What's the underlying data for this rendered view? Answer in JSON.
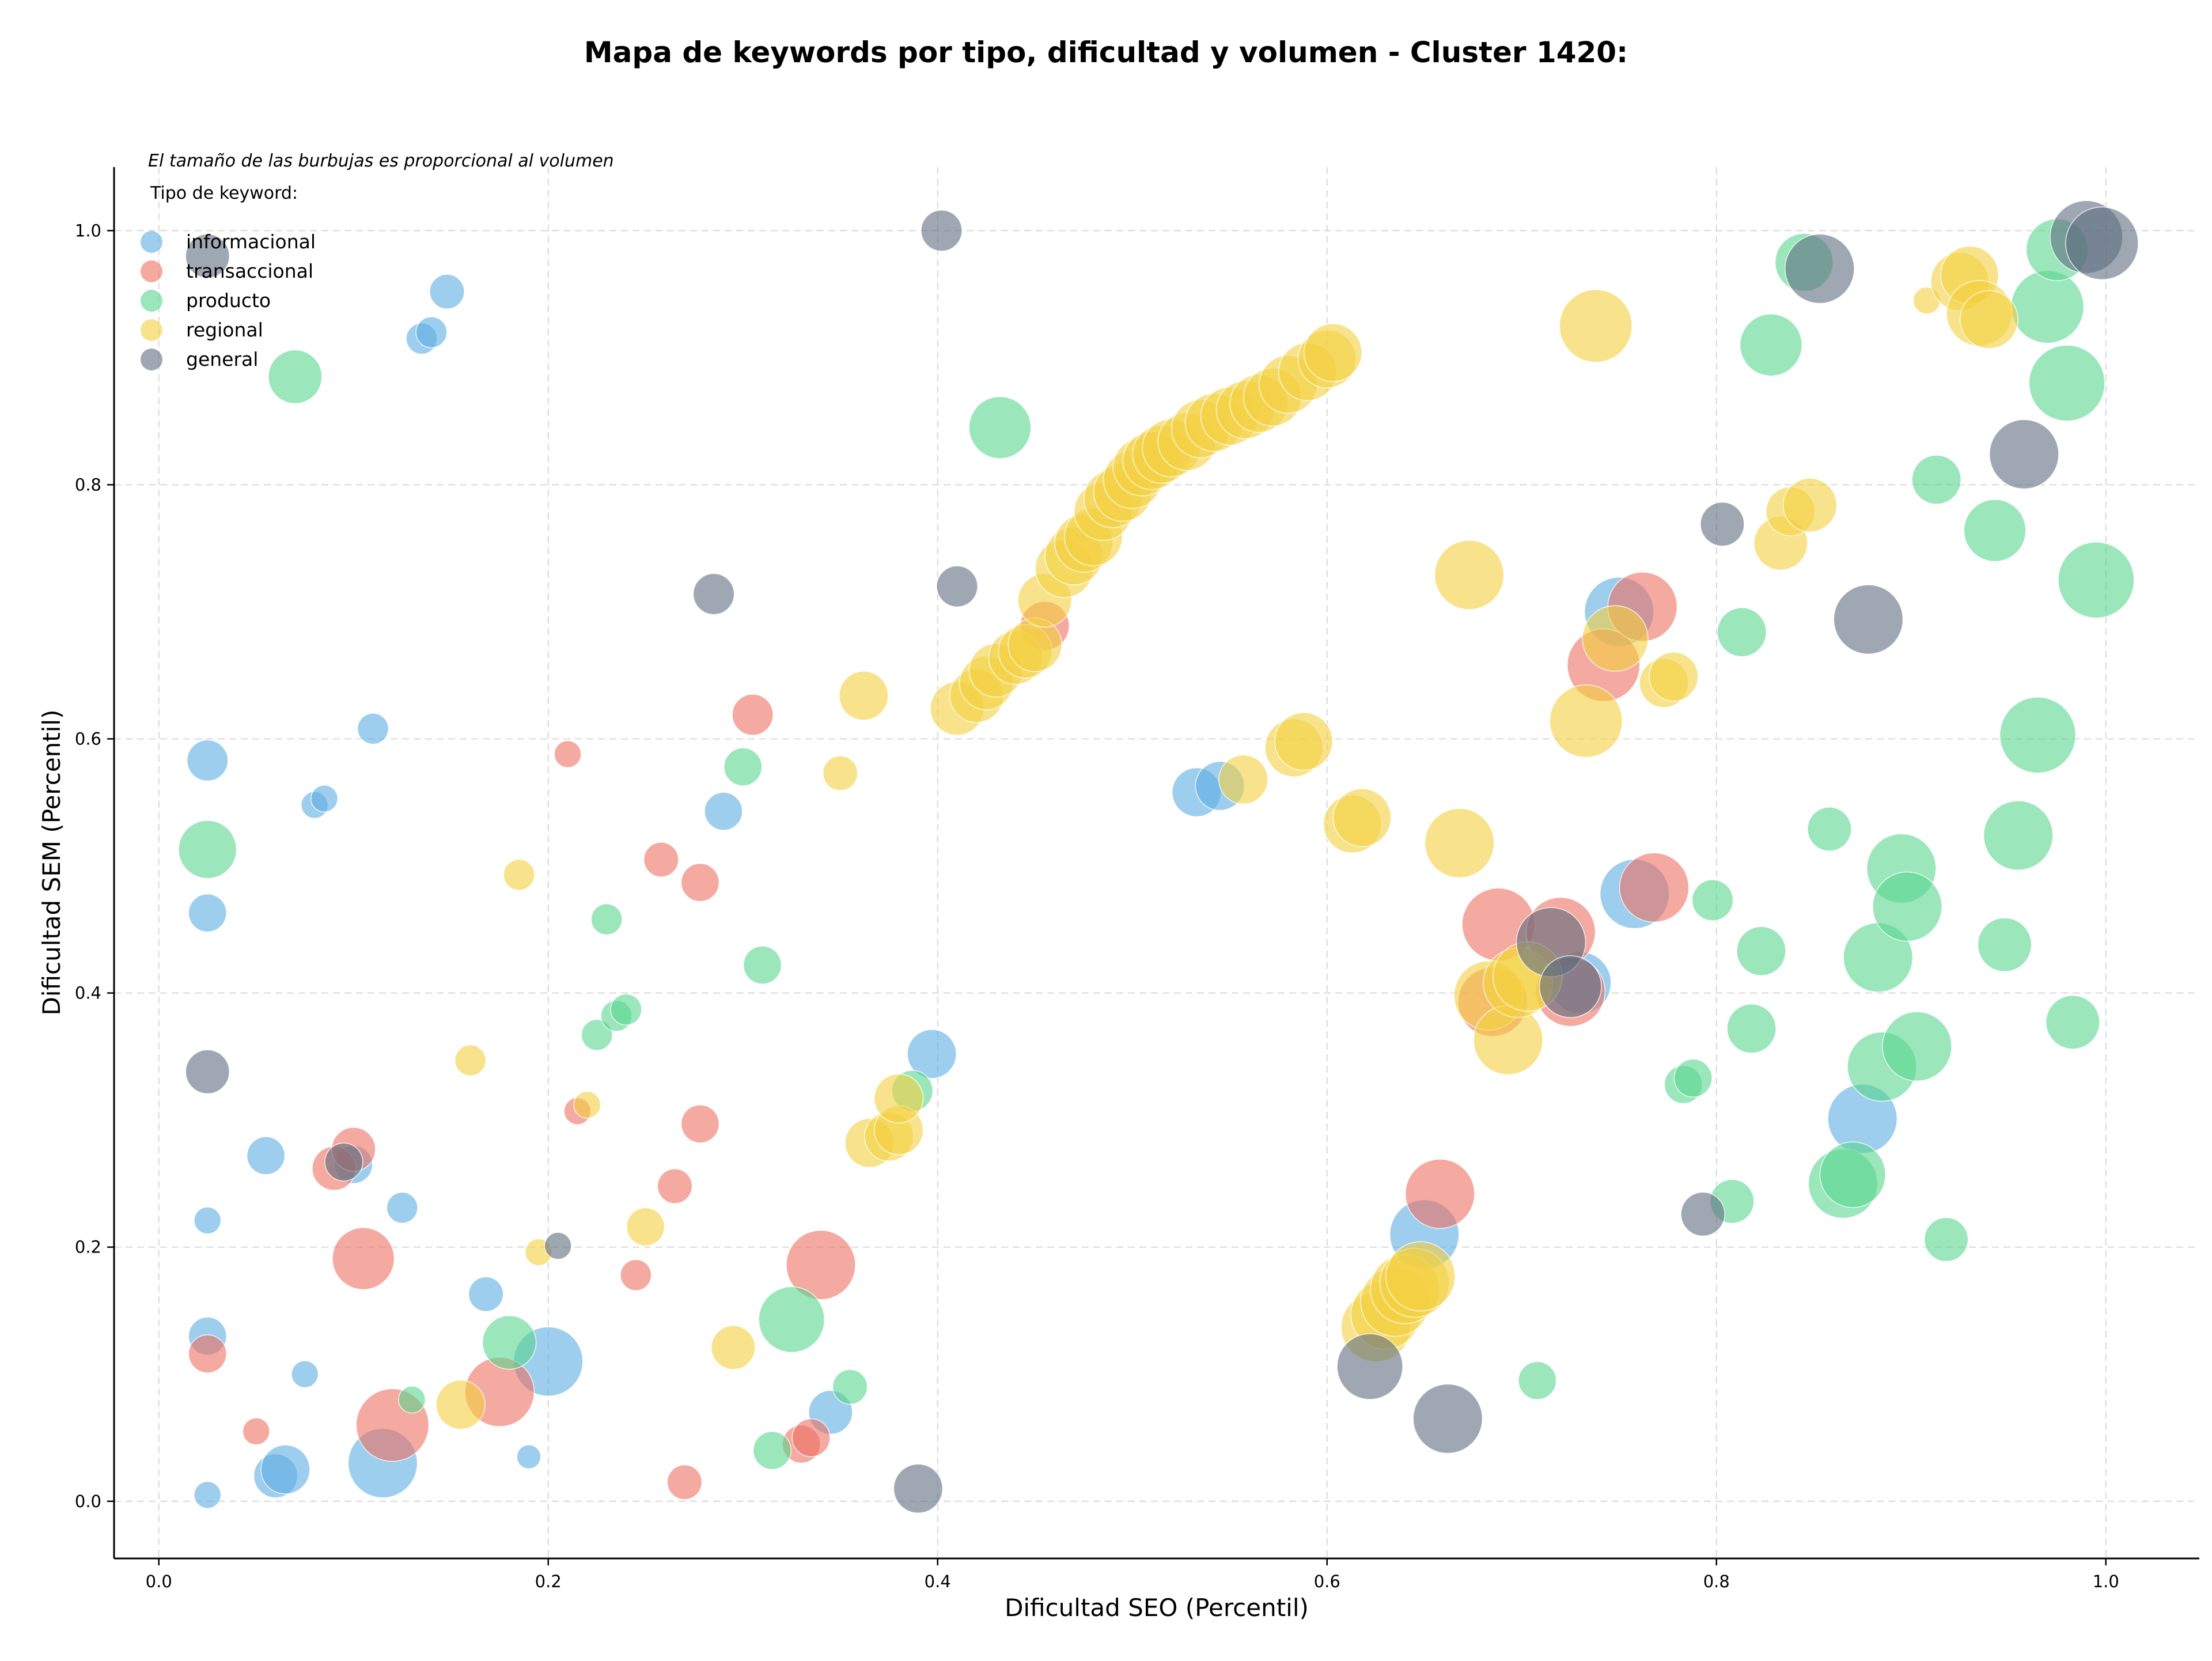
{
  "chart_data": {
    "type": "scatter",
    "title": "Mapa de keywords por tipo, dificultad y volumen - Cluster 1420:",
    "note": "El tamaño de las burbujas es proporcional al volumen",
    "legend_title": "Tipo de keyword:",
    "legend_position": "top-left",
    "xlabel": "Dificultad SEO (Percentil)",
    "ylabel": "Dificultad SEM (Percentil)",
    "xlim": [
      -0.023,
      1.048
    ],
    "ylim": [
      -0.045,
      1.05
    ],
    "xticks": [
      "0.0",
      "0.2",
      "0.4",
      "0.6",
      "0.8",
      "1.0"
    ],
    "yticks": [
      "0.0",
      "0.2",
      "0.4",
      "0.6",
      "0.8",
      "1.0"
    ],
    "grid": true,
    "size_unit": "relative volume",
    "series": [
      {
        "name": "informacional",
        "color": "#5dade2",
        "points": [
          {
            "x": 0.025,
            "y": 0.583,
            "s": 3.5
          },
          {
            "x": 0.025,
            "y": 0.463,
            "s": 3
          },
          {
            "x": 0.025,
            "y": 0.221,
            "s": 1.5
          },
          {
            "x": 0.025,
            "y": 0.13,
            "s": 3
          },
          {
            "x": 0.025,
            "y": 0.005,
            "s": 1.5
          },
          {
            "x": 0.055,
            "y": 0.272,
            "s": 3
          },
          {
            "x": 0.06,
            "y": 0.02,
            "s": 4
          },
          {
            "x": 0.065,
            "y": 0.025,
            "s": 5
          },
          {
            "x": 0.075,
            "y": 0.1,
            "s": 1.5
          },
          {
            "x": 0.08,
            "y": 0.548,
            "s": 1.5
          },
          {
            "x": 0.085,
            "y": 0.553,
            "s": 1.5
          },
          {
            "x": 0.1,
            "y": 0.265,
            "s": 3
          },
          {
            "x": 0.11,
            "y": 0.608,
            "s": 2
          },
          {
            "x": 0.115,
            "y": 0.03,
            "s": 10
          },
          {
            "x": 0.125,
            "y": 0.231,
            "s": 2
          },
          {
            "x": 0.135,
            "y": 0.915,
            "s": 2
          },
          {
            "x": 0.14,
            "y": 0.92,
            "s": 2
          },
          {
            "x": 0.148,
            "y": 0.952,
            "s": 2.5
          },
          {
            "x": 0.168,
            "y": 0.163,
            "s": 2.5
          },
          {
            "x": 0.19,
            "y": 0.035,
            "s": 1.2
          },
          {
            "x": 0.2,
            "y": 0.11,
            "s": 10
          },
          {
            "x": 0.29,
            "y": 0.543,
            "s": 3
          },
          {
            "x": 0.345,
            "y": 0.07,
            "s": 4
          },
          {
            "x": 0.397,
            "y": 0.352,
            "s": 5
          },
          {
            "x": 0.533,
            "y": 0.558,
            "s": 5
          },
          {
            "x": 0.545,
            "y": 0.563,
            "s": 5
          },
          {
            "x": 0.65,
            "y": 0.21,
            "s": 10
          },
          {
            "x": 0.73,
            "y": 0.408,
            "s": 8
          },
          {
            "x": 0.75,
            "y": 0.7,
            "s": 10
          },
          {
            "x": 0.758,
            "y": 0.478,
            "s": 10
          },
          {
            "x": 0.875,
            "y": 0.301,
            "s": 10
          }
        ]
      },
      {
        "name": "transaccional",
        "color": "#ec7063",
        "points": [
          {
            "x": 0.025,
            "y": 0.116,
            "s": 3
          },
          {
            "x": 0.05,
            "y": 0.055,
            "s": 1.5
          },
          {
            "x": 0.09,
            "y": 0.262,
            "s": 4
          },
          {
            "x": 0.1,
            "y": 0.277,
            "s": 4
          },
          {
            "x": 0.105,
            "y": 0.191,
            "s": 8
          },
          {
            "x": 0.12,
            "y": 0.06,
            "s": 11
          },
          {
            "x": 0.175,
            "y": 0.086,
            "s": 10
          },
          {
            "x": 0.21,
            "y": 0.588,
            "s": 1.5
          },
          {
            "x": 0.215,
            "y": 0.307,
            "s": 1.5
          },
          {
            "x": 0.245,
            "y": 0.178,
            "s": 2
          },
          {
            "x": 0.258,
            "y": 0.505,
            "s": 2.5
          },
          {
            "x": 0.265,
            "y": 0.248,
            "s": 2.5
          },
          {
            "x": 0.27,
            "y": 0.015,
            "s": 2.5
          },
          {
            "x": 0.278,
            "y": 0.487,
            "s": 3
          },
          {
            "x": 0.278,
            "y": 0.297,
            "s": 3
          },
          {
            "x": 0.305,
            "y": 0.619,
            "s": 3.5
          },
          {
            "x": 0.33,
            "y": 0.045,
            "s": 3
          },
          {
            "x": 0.335,
            "y": 0.05,
            "s": 3
          },
          {
            "x": 0.34,
            "y": 0.186,
            "s": 10
          },
          {
            "x": 0.455,
            "y": 0.689,
            "s": 5
          },
          {
            "x": 0.658,
            "y": 0.242,
            "s": 10
          },
          {
            "x": 0.685,
            "y": 0.393,
            "s": 10
          },
          {
            "x": 0.688,
            "y": 0.454,
            "s": 11
          },
          {
            "x": 0.72,
            "y": 0.448,
            "s": 10
          },
          {
            "x": 0.725,
            "y": 0.401,
            "s": 10
          },
          {
            "x": 0.742,
            "y": 0.658,
            "s": 11
          },
          {
            "x": 0.762,
            "y": 0.704,
            "s": 10
          },
          {
            "x": 0.768,
            "y": 0.483,
            "s": 10
          }
        ]
      },
      {
        "name": "producto",
        "color": "#58d68d",
        "points": [
          {
            "x": 0.025,
            "y": 0.513,
            "s": 7
          },
          {
            "x": 0.07,
            "y": 0.885,
            "s": 6
          },
          {
            "x": 0.13,
            "y": 0.08,
            "s": 1.5
          },
          {
            "x": 0.18,
            "y": 0.125,
            "s": 6
          },
          {
            "x": 0.225,
            "y": 0.367,
            "s": 2
          },
          {
            "x": 0.23,
            "y": 0.458,
            "s": 2
          },
          {
            "x": 0.235,
            "y": 0.382,
            "s": 2
          },
          {
            "x": 0.24,
            "y": 0.387,
            "s": 2
          },
          {
            "x": 0.3,
            "y": 0.578,
            "s": 3
          },
          {
            "x": 0.31,
            "y": 0.422,
            "s": 3
          },
          {
            "x": 0.315,
            "y": 0.04,
            "s": 3
          },
          {
            "x": 0.325,
            "y": 0.143,
            "s": 9
          },
          {
            "x": 0.355,
            "y": 0.09,
            "s": 2.5
          },
          {
            "x": 0.387,
            "y": 0.323,
            "s": 3.5
          },
          {
            "x": 0.432,
            "y": 0.845,
            "s": 8
          },
          {
            "x": 0.708,
            "y": 0.095,
            "s": 3
          },
          {
            "x": 0.783,
            "y": 0.328,
            "s": 3
          },
          {
            "x": 0.788,
            "y": 0.333,
            "s": 3
          },
          {
            "x": 0.798,
            "y": 0.473,
            "s": 3.5
          },
          {
            "x": 0.808,
            "y": 0.236,
            "s": 4
          },
          {
            "x": 0.813,
            "y": 0.684,
            "s": 5
          },
          {
            "x": 0.818,
            "y": 0.372,
            "s": 5
          },
          {
            "x": 0.823,
            "y": 0.433,
            "s": 5
          },
          {
            "x": 0.828,
            "y": 0.91,
            "s": 8
          },
          {
            "x": 0.845,
            "y": 0.975,
            "s": 7
          },
          {
            "x": 0.858,
            "y": 0.529,
            "s": 4
          },
          {
            "x": 0.865,
            "y": 0.25,
            "s": 10
          },
          {
            "x": 0.87,
            "y": 0.257,
            "s": 9
          },
          {
            "x": 0.883,
            "y": 0.428,
            "s": 10
          },
          {
            "x": 0.885,
            "y": 0.342,
            "s": 10
          },
          {
            "x": 0.895,
            "y": 0.498,
            "s": 10
          },
          {
            "x": 0.898,
            "y": 0.468,
            "s": 10
          },
          {
            "x": 0.903,
            "y": 0.358,
            "s": 10
          },
          {
            "x": 0.913,
            "y": 0.804,
            "s": 5
          },
          {
            "x": 0.918,
            "y": 0.206,
            "s": 4
          },
          {
            "x": 0.943,
            "y": 0.764,
            "s": 8
          },
          {
            "x": 0.948,
            "y": 0.438,
            "s": 6
          },
          {
            "x": 0.955,
            "y": 0.524,
            "s": 10
          },
          {
            "x": 0.965,
            "y": 0.603,
            "s": 12
          },
          {
            "x": 0.97,
            "y": 0.94,
            "s": 11
          },
          {
            "x": 0.975,
            "y": 0.985,
            "s": 8
          },
          {
            "x": 0.98,
            "y": 0.88,
            "s": 12
          },
          {
            "x": 0.983,
            "y": 0.377,
            "s": 6
          },
          {
            "x": 0.995,
            "y": 0.725,
            "s": 12
          }
        ]
      },
      {
        "name": "regional",
        "color": "#f4d03f",
        "points": [
          {
            "x": 0.155,
            "y": 0.076,
            "s": 5
          },
          {
            "x": 0.16,
            "y": 0.347,
            "s": 2
          },
          {
            "x": 0.185,
            "y": 0.493,
            "s": 2
          },
          {
            "x": 0.195,
            "y": 0.196,
            "s": 1.5
          },
          {
            "x": 0.22,
            "y": 0.312,
            "s": 1.5
          },
          {
            "x": 0.25,
            "y": 0.216,
            "s": 3
          },
          {
            "x": 0.295,
            "y": 0.121,
            "s": 4
          },
          {
            "x": 0.35,
            "y": 0.573,
            "s": 2.5
          },
          {
            "x": 0.362,
            "y": 0.634,
            "s": 5
          },
          {
            "x": 0.365,
            "y": 0.282,
            "s": 5
          },
          {
            "x": 0.375,
            "y": 0.287,
            "s": 5
          },
          {
            "x": 0.38,
            "y": 0.292,
            "s": 5
          },
          {
            "x": 0.38,
            "y": 0.317,
            "s": 5
          },
          {
            "x": 0.41,
            "y": 0.624,
            "s": 6
          },
          {
            "x": 0.42,
            "y": 0.634,
            "s": 6
          },
          {
            "x": 0.425,
            "y": 0.644,
            "s": 6
          },
          {
            "x": 0.43,
            "y": 0.654,
            "s": 6
          },
          {
            "x": 0.44,
            "y": 0.664,
            "s": 6
          },
          {
            "x": 0.445,
            "y": 0.669,
            "s": 6
          },
          {
            "x": 0.45,
            "y": 0.674,
            "s": 6
          },
          {
            "x": 0.455,
            "y": 0.709,
            "s": 6
          },
          {
            "x": 0.465,
            "y": 0.734,
            "s": 7
          },
          {
            "x": 0.47,
            "y": 0.744,
            "s": 7
          },
          {
            "x": 0.475,
            "y": 0.754,
            "s": 7
          },
          {
            "x": 0.48,
            "y": 0.759,
            "s": 7
          },
          {
            "x": 0.485,
            "y": 0.779,
            "s": 7
          },
          {
            "x": 0.49,
            "y": 0.789,
            "s": 7
          },
          {
            "x": 0.495,
            "y": 0.794,
            "s": 7
          },
          {
            "x": 0.5,
            "y": 0.804,
            "s": 7
          },
          {
            "x": 0.505,
            "y": 0.814,
            "s": 7
          },
          {
            "x": 0.51,
            "y": 0.819,
            "s": 7
          },
          {
            "x": 0.515,
            "y": 0.824,
            "s": 7
          },
          {
            "x": 0.52,
            "y": 0.829,
            "s": 7
          },
          {
            "x": 0.528,
            "y": 0.834,
            "s": 7
          },
          {
            "x": 0.535,
            "y": 0.844,
            "s": 7
          },
          {
            "x": 0.542,
            "y": 0.849,
            "s": 7
          },
          {
            "x": 0.55,
            "y": 0.854,
            "s": 7
          },
          {
            "x": 0.558,
            "y": 0.859,
            "s": 7
          },
          {
            "x": 0.565,
            "y": 0.864,
            "s": 7
          },
          {
            "x": 0.572,
            "y": 0.869,
            "s": 7
          },
          {
            "x": 0.58,
            "y": 0.879,
            "s": 7
          },
          {
            "x": 0.59,
            "y": 0.889,
            "s": 7
          },
          {
            "x": 0.6,
            "y": 0.899,
            "s": 7
          },
          {
            "x": 0.603,
            "y": 0.904,
            "s": 7
          },
          {
            "x": 0.557,
            "y": 0.568,
            "s": 5
          },
          {
            "x": 0.583,
            "y": 0.593,
            "s": 7
          },
          {
            "x": 0.588,
            "y": 0.598,
            "s": 7
          },
          {
            "x": 0.613,
            "y": 0.533,
            "s": 7
          },
          {
            "x": 0.618,
            "y": 0.538,
            "s": 7
          },
          {
            "x": 0.625,
            "y": 0.137,
            "s": 10
          },
          {
            "x": 0.63,
            "y": 0.147,
            "s": 10
          },
          {
            "x": 0.635,
            "y": 0.157,
            "s": 10
          },
          {
            "x": 0.64,
            "y": 0.167,
            "s": 10
          },
          {
            "x": 0.645,
            "y": 0.172,
            "s": 10
          },
          {
            "x": 0.648,
            "y": 0.177,
            "s": 10
          },
          {
            "x": 0.668,
            "y": 0.518,
            "s": 10
          },
          {
            "x": 0.673,
            "y": 0.729,
            "s": 10
          },
          {
            "x": 0.683,
            "y": 0.398,
            "s": 10
          },
          {
            "x": 0.693,
            "y": 0.363,
            "s": 10
          },
          {
            "x": 0.698,
            "y": 0.408,
            "s": 10
          },
          {
            "x": 0.703,
            "y": 0.413,
            "s": 10
          },
          {
            "x": 0.733,
            "y": 0.614,
            "s": 11
          },
          {
            "x": 0.738,
            "y": 0.925,
            "s": 11
          },
          {
            "x": 0.748,
            "y": 0.679,
            "s": 9
          },
          {
            "x": 0.773,
            "y": 0.644,
            "s": 5
          },
          {
            "x": 0.778,
            "y": 0.649,
            "s": 5
          },
          {
            "x": 0.833,
            "y": 0.754,
            "s": 6
          },
          {
            "x": 0.838,
            "y": 0.779,
            "s": 5
          },
          {
            "x": 0.848,
            "y": 0.784,
            "s": 6
          },
          {
            "x": 0.908,
            "y": 0.945,
            "s": 1.5
          },
          {
            "x": 0.925,
            "y": 0.96,
            "s": 7
          },
          {
            "x": 0.93,
            "y": 0.965,
            "s": 7
          },
          {
            "x": 0.935,
            "y": 0.935,
            "s": 9
          },
          {
            "x": 0.94,
            "y": 0.93,
            "s": 7
          }
        ]
      },
      {
        "name": "general",
        "color": "#5d6d7e",
        "points": [
          {
            "x": 0.025,
            "y": 0.98,
            "s": 4
          },
          {
            "x": 0.025,
            "y": 0.338,
            "s": 4
          },
          {
            "x": 0.095,
            "y": 0.267,
            "s": 3
          },
          {
            "x": 0.205,
            "y": 0.201,
            "s": 1.5
          },
          {
            "x": 0.285,
            "y": 0.714,
            "s": 3.5
          },
          {
            "x": 0.39,
            "y": 0.01,
            "s": 5
          },
          {
            "x": 0.402,
            "y": 1.0,
            "s": 3.5
          },
          {
            "x": 0.41,
            "y": 0.72,
            "s": 3.5
          },
          {
            "x": 0.622,
            "y": 0.106,
            "s": 9
          },
          {
            "x": 0.662,
            "y": 0.065,
            "s": 10
          },
          {
            "x": 0.715,
            "y": 0.44,
            "s": 10
          },
          {
            "x": 0.725,
            "y": 0.405,
            "s": 8
          },
          {
            "x": 0.793,
            "y": 0.226,
            "s": 4
          },
          {
            "x": 0.803,
            "y": 0.769,
            "s": 4
          },
          {
            "x": 0.853,
            "y": 0.97,
            "s": 10
          },
          {
            "x": 0.878,
            "y": 0.694,
            "s": 10
          },
          {
            "x": 0.958,
            "y": 0.824,
            "s": 10
          },
          {
            "x": 0.99,
            "y": 0.995,
            "s": 11
          },
          {
            "x": 0.998,
            "y": 0.99,
            "s": 11
          }
        ]
      }
    ]
  }
}
